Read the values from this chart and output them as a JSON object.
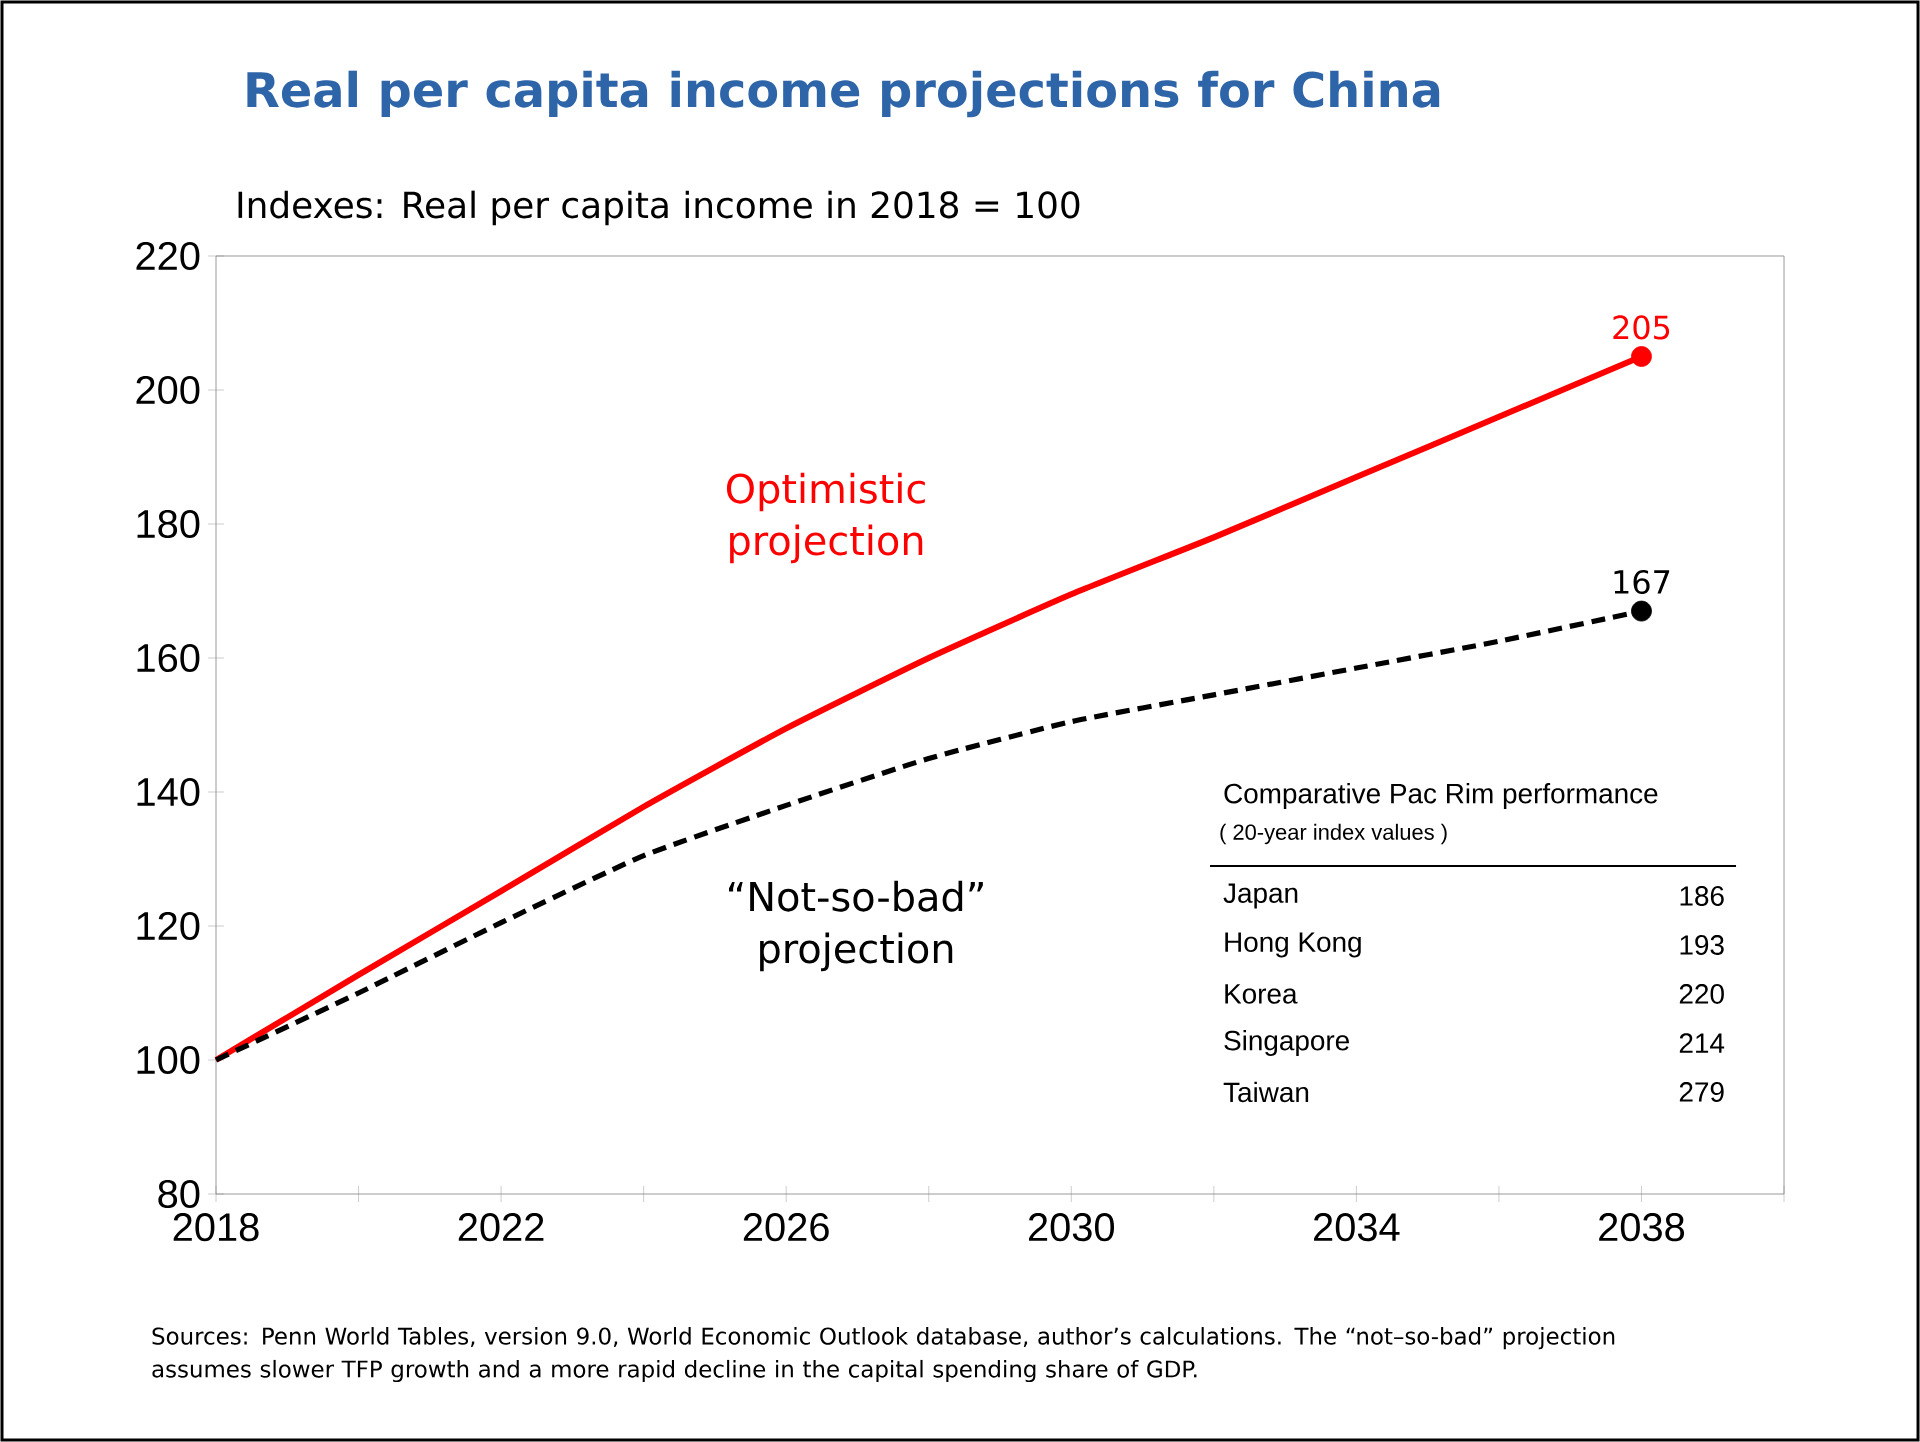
{
  "chart_data": {
    "type": "line",
    "title": "Real per capita income projections for China",
    "subtitle": "Indexes:  Real per capita income in 2018 = 100",
    "xlim": [
      2018,
      2040
    ],
    "xticks": [
      2018,
      {
        "value": 2020,
        "label": null
      },
      2022,
      {
        "value": 2024,
        "label": null
      },
      2026,
      {
        "value": 2028,
        "label": null
      },
      2030,
      {
        "value": 2032,
        "label": null
      },
      2034,
      {
        "value": 2036,
        "label": null
      },
      2038,
      {
        "value": 2040,
        "label": null
      }
    ],
    "ylim": [
      80,
      220
    ],
    "yticks": [
      80,
      100,
      120,
      140,
      160,
      180,
      200,
      220
    ],
    "series": [
      {
        "name": "Optimistic projection",
        "color": "#ff0000",
        "line_style": "solid",
        "x": [
          2018,
          2020,
          2022,
          2024,
          2026,
          2028,
          2030,
          2032,
          2034,
          2036,
          2038
        ],
        "values": [
          100,
          112.7,
          125.2,
          137.8,
          149.5,
          160,
          169.5,
          178,
          187,
          196,
          205
        ]
      },
      {
        "name": "“Not-so-bad” projection",
        "color": "#000000",
        "line_style": "dashed",
        "x": [
          2018,
          2020,
          2022,
          2024,
          2026,
          2028,
          2030,
          2032,
          2034,
          2036,
          2038
        ],
        "values": [
          100,
          110,
          120.5,
          130.5,
          138,
          145,
          150.5,
          154.5,
          158.5,
          162.5,
          167
        ]
      },
      {
        "type": "scatter",
        "marker": "circle",
        "color": "#ff0000",
        "x": [
          2038
        ],
        "values": [
          205
        ],
        "value_labels": [
          "205"
        ]
      },
      {
        "type": "scatter",
        "marker": "circle",
        "color": "#000000",
        "x": [
          2038
        ],
        "values": [
          167
        ],
        "value_labels": [
          "167"
        ]
      }
    ],
    "annotations": [
      "Comparative Pac Rim performance",
      "( 20-year index values )",
      "Japan",
      "186",
      "Hong Kong",
      "193",
      "Korea",
      "220",
      "Singapore",
      "214",
      "Taiwan",
      "279",
      "Sources:   Penn World Tables, version 9.0, World Economic Outlook database, author’s calculations.  The “not–so-bad” projection assumes slower TFP growth and a more rapid decline in the capital spending share of GDP."
    ]
  }
}
